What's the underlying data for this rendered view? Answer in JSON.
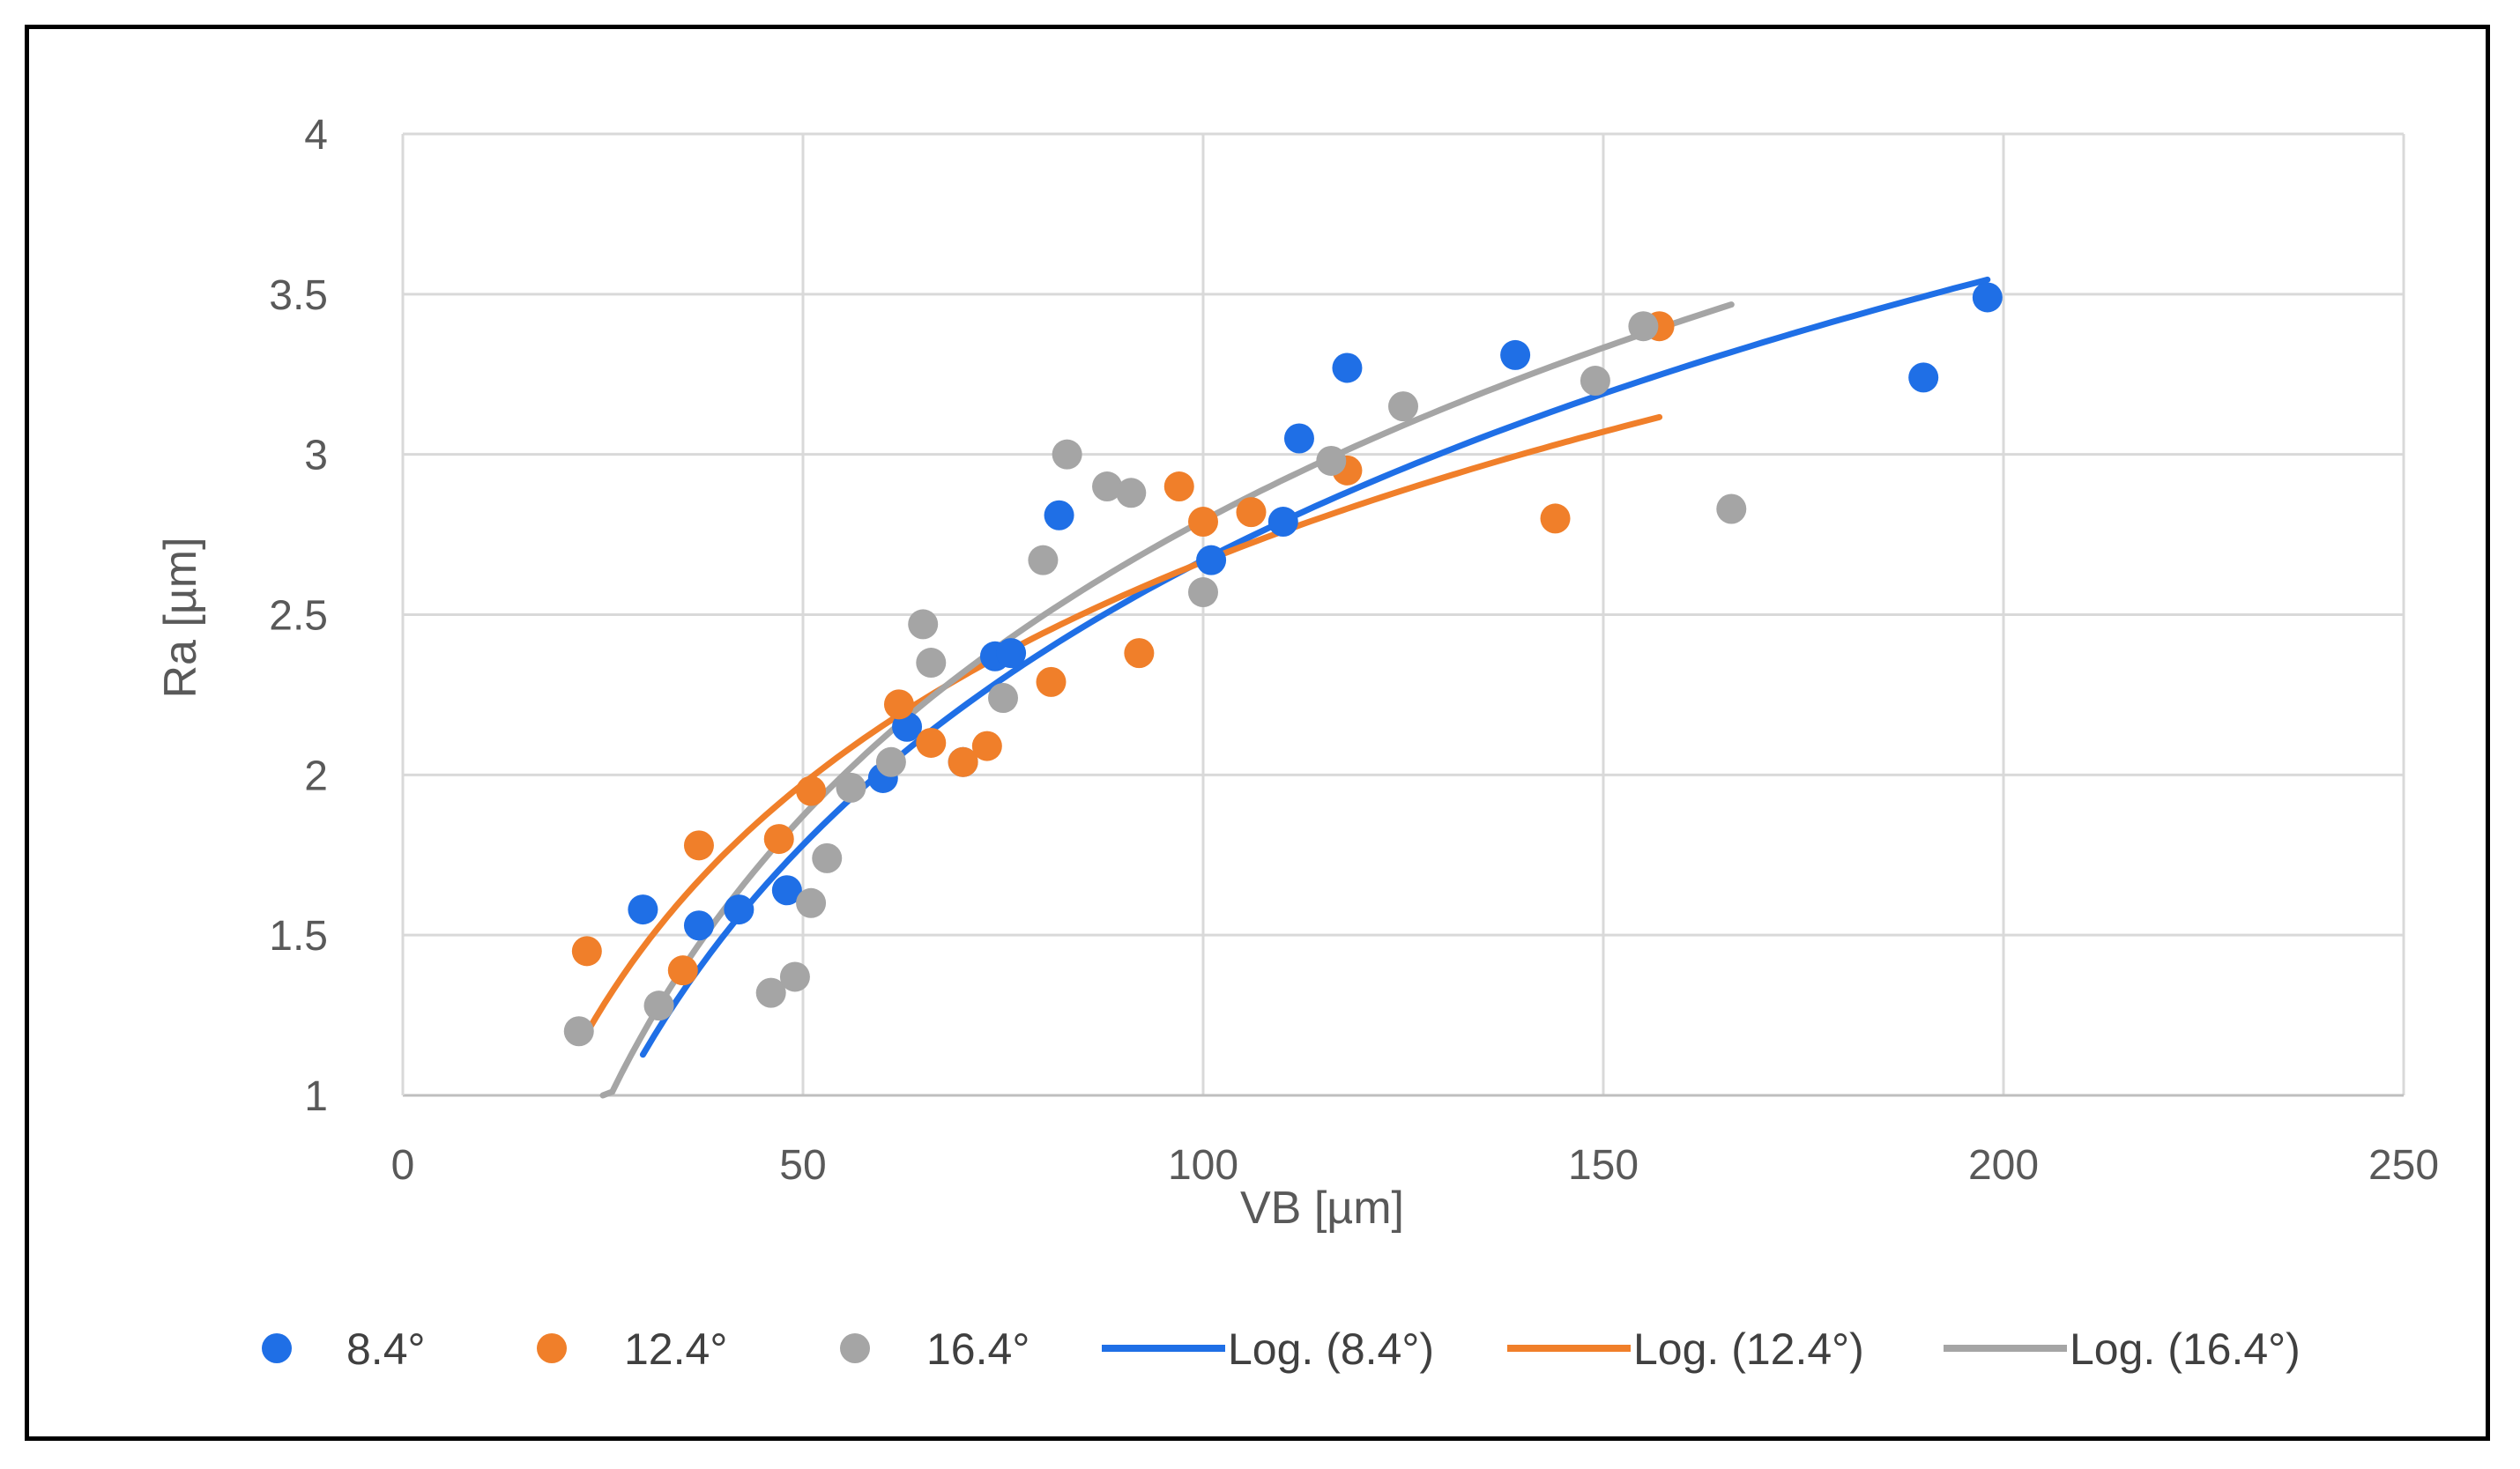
{
  "chart_data": {
    "type": "scatter",
    "xlabel": "VB [µm]",
    "ylabel": "Ra [µm]",
    "xlim": [
      0,
      250
    ],
    "ylim": [
      1,
      4
    ],
    "xticks": [
      0,
      50,
      100,
      150,
      200,
      250
    ],
    "yticks": [
      1,
      1.5,
      2,
      2.5,
      3,
      3.5,
      4
    ],
    "grid": true,
    "legend_position": "bottom",
    "series": [
      {
        "name": "8.4°",
        "color": "#1F6FE6",
        "points": [
          [
            30,
            1.58
          ],
          [
            37,
            1.53
          ],
          [
            42,
            1.58
          ],
          [
            48,
            1.64
          ],
          [
            60,
            1.99
          ],
          [
            63,
            2.15
          ],
          [
            70,
            2.04
          ],
          [
            74,
            2.37
          ],
          [
            76,
            2.38
          ],
          [
            82,
            2.81
          ],
          [
            101,
            2.67
          ],
          [
            110,
            2.79
          ],
          [
            112,
            3.05
          ],
          [
            118,
            3.27
          ],
          [
            139,
            3.31
          ],
          [
            190,
            3.24
          ],
          [
            198,
            3.49
          ]
        ]
      },
      {
        "name": "12.4°",
        "color": "#F07F2A",
        "points": [
          [
            23,
            1.45
          ],
          [
            35,
            1.39
          ],
          [
            37,
            1.78
          ],
          [
            47,
            1.8
          ],
          [
            51,
            1.95
          ],
          [
            62,
            2.22
          ],
          [
            66,
            2.1
          ],
          [
            70,
            2.04
          ],
          [
            73,
            2.09
          ],
          [
            81,
            2.29
          ],
          [
            92,
            2.38
          ],
          [
            97,
            2.9
          ],
          [
            100,
            2.79
          ],
          [
            106,
            2.82
          ],
          [
            118,
            2.95
          ],
          [
            144,
            2.8
          ],
          [
            157,
            3.4
          ]
        ]
      },
      {
        "name": "16.4°",
        "color": "#A5A5A5",
        "points": [
          [
            22,
            1.2
          ],
          [
            32,
            1.28
          ],
          [
            46,
            1.32
          ],
          [
            49,
            1.37
          ],
          [
            51,
            1.6
          ],
          [
            53,
            1.74
          ],
          [
            56,
            1.96
          ],
          [
            61,
            2.04
          ],
          [
            65,
            2.47
          ],
          [
            66,
            2.35
          ],
          [
            75,
            2.24
          ],
          [
            80,
            2.67
          ],
          [
            83,
            3.0
          ],
          [
            88,
            2.9
          ],
          [
            91,
            2.88
          ],
          [
            100,
            2.57
          ],
          [
            116,
            2.98
          ],
          [
            125,
            3.15
          ],
          [
            149,
            3.23
          ],
          [
            155,
            3.4
          ],
          [
            166,
            2.83
          ]
        ]
      }
    ],
    "trendlines": [
      {
        "name": "Log. (8.4°)",
        "color": "#1F6FE6",
        "a": 1.2815,
        "b": -3.2316,
        "x_range": [
          30,
          198
        ]
      },
      {
        "name": "Log. (12.4°)",
        "color": "#F07F2A",
        "a": 1.0,
        "b": -1.94,
        "x_range": [
          23,
          157
        ]
      },
      {
        "name": "Log. (16.4°)",
        "color": "#A5A5A5",
        "a": 1.3298,
        "b": -3.3302,
        "x_range": [
          25,
          166
        ]
      }
    ]
  }
}
